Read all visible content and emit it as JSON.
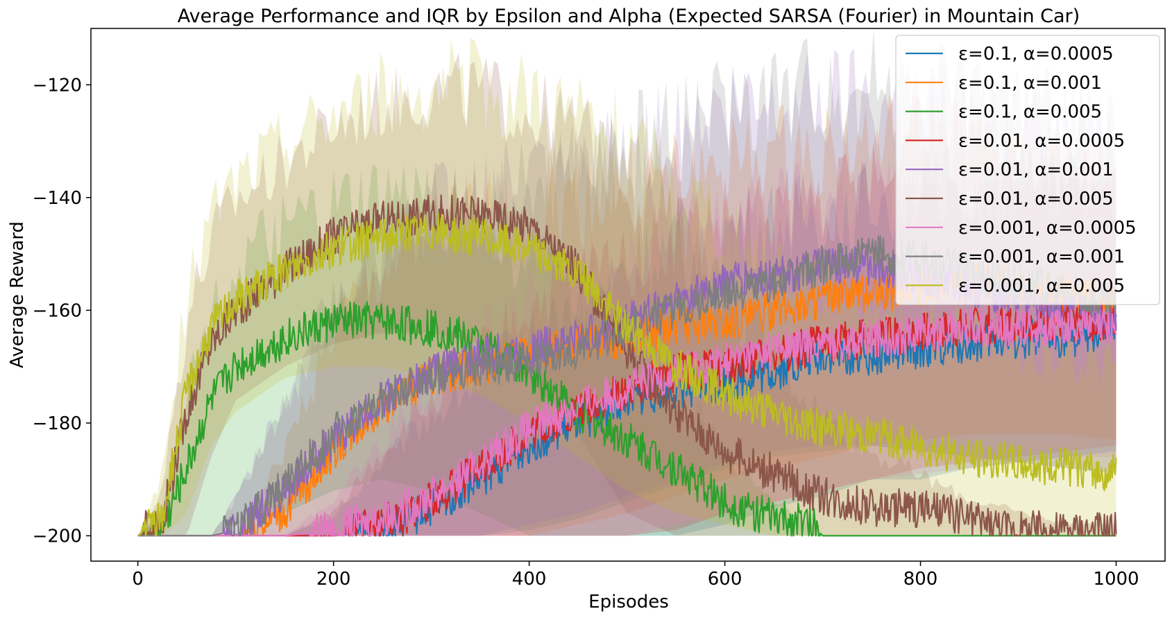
{
  "chart_data": {
    "type": "line",
    "title": "Average Performance and IQR by Epsilon and Alpha (Expected SARSA (Fourier) in Mountain Car)",
    "xlabel": "Episodes",
    "ylabel": "Average Reward",
    "xlim": [
      -48,
      1050
    ],
    "ylim": [
      -204.5,
      -110
    ],
    "xticks": [
      0,
      200,
      400,
      600,
      800,
      1000
    ],
    "xtick_labels": [
      "0",
      "200",
      "400",
      "600",
      "800",
      "1000"
    ],
    "yticks": [
      -200,
      -180,
      -160,
      -140,
      -120
    ],
    "ytick_labels": [
      "−200",
      "−180",
      "−160",
      "−140",
      "−120"
    ],
    "grid": false,
    "legend_position": "top-right",
    "series": [
      {
        "name": "ε=0.1, α=0.0005",
        "color": "#1f77b4",
        "x": [
          0,
          150,
          200,
          250,
          300,
          350,
          400,
          450,
          500,
          550,
          600,
          650,
          700,
          750,
          800,
          850,
          900,
          950,
          1000
        ],
        "y": [
          -200,
          -200,
          -200,
          -199,
          -195,
          -190,
          -184,
          -180,
          -176,
          -174,
          -173,
          -171,
          -168,
          -168,
          -167,
          -166,
          -165,
          -165,
          -164
        ],
        "iqr_low": [
          -200,
          -200,
          -200,
          -200,
          -200,
          -200,
          -200,
          -200,
          -200,
          -200,
          -198,
          -195,
          -193,
          -190,
          -190,
          -188,
          -187,
          -186,
          -185
        ],
        "iqr_high": [
          -200,
          -200,
          -197,
          -188,
          -180,
          -174,
          -166,
          -162,
          -156,
          -152,
          -150,
          -148,
          -146,
          -144,
          -142,
          -142,
          -141,
          -142,
          -142
        ]
      },
      {
        "name": "ε=0.1, α=0.001",
        "color": "#ff7f0e",
        "x": [
          0,
          100,
          150,
          200,
          250,
          300,
          350,
          400,
          450,
          500,
          550,
          600,
          650,
          700,
          750,
          800,
          850,
          900,
          950,
          1000
        ],
        "y": [
          -200,
          -200,
          -196,
          -185,
          -177,
          -172,
          -170,
          -168,
          -166,
          -165,
          -163,
          -162,
          -160,
          -158,
          -157,
          -156,
          -155,
          -156,
          -157,
          -158
        ],
        "iqr_low": [
          -200,
          -200,
          -200,
          -200,
          -200,
          -200,
          -200,
          -200,
          -198,
          -196,
          -193,
          -190,
          -188,
          -186,
          -184,
          -183,
          -182,
          -182,
          -182,
          -183
        ],
        "iqr_high": [
          -200,
          -200,
          -186,
          -166,
          -156,
          -150,
          -148,
          -146,
          -144,
          -142,
          -140,
          -138,
          -136,
          -135,
          -134,
          -133,
          -134,
          -136,
          -138,
          -140
        ]
      },
      {
        "name": "ε=0.1, α=0.005",
        "color": "#2ca02c",
        "x": [
          0,
          25,
          50,
          75,
          100,
          150,
          200,
          250,
          300,
          350,
          400,
          450,
          500,
          550,
          600,
          650,
          690,
          700,
          1000
        ],
        "y": [
          -200,
          -199,
          -188,
          -176,
          -170,
          -165,
          -162,
          -162,
          -163,
          -166,
          -171,
          -178,
          -183,
          -188,
          -194,
          -197,
          -198,
          -200,
          -200
        ],
        "iqr_low": [
          -200,
          -200,
          -200,
          -200,
          -198,
          -196,
          -192,
          -190,
          -192,
          -196,
          -200,
          -200,
          -200,
          -200,
          -200,
          -200,
          -200,
          -200,
          -200
        ],
        "iqr_high": [
          -200,
          -196,
          -176,
          -164,
          -156,
          -150,
          -146,
          -144,
          -144,
          -148,
          -154,
          -160,
          -168,
          -176,
          -186,
          -194,
          -198,
          -200,
          -200
        ]
      },
      {
        "name": "ε=0.01, α=0.0005",
        "color": "#d62728",
        "x": [
          0,
          150,
          200,
          250,
          300,
          350,
          400,
          450,
          500,
          550,
          600,
          650,
          700,
          750,
          800,
          850,
          900,
          950,
          1000
        ],
        "y": [
          -200,
          -200,
          -200,
          -198,
          -194,
          -188,
          -182,
          -178,
          -174,
          -171,
          -170,
          -168,
          -166,
          -165,
          -164,
          -163,
          -162,
          -162,
          -162
        ],
        "iqr_low": [
          -200,
          -200,
          -200,
          -200,
          -200,
          -200,
          -200,
          -200,
          -200,
          -199,
          -196,
          -194,
          -192,
          -190,
          -188,
          -187,
          -186,
          -185,
          -184
        ],
        "iqr_high": [
          -200,
          -200,
          -196,
          -186,
          -178,
          -170,
          -162,
          -158,
          -154,
          -150,
          -148,
          -146,
          -144,
          -142,
          -141,
          -140,
          -140,
          -141,
          -142
        ]
      },
      {
        "name": "ε=0.01, α=0.001",
        "color": "#9467bd",
        "x": [
          0,
          75,
          100,
          150,
          200,
          250,
          300,
          350,
          400,
          450,
          500,
          550,
          600,
          650,
          700,
          750,
          800,
          850,
          900,
          950,
          1000
        ],
        "y": [
          -200,
          -200,
          -199,
          -192,
          -183,
          -176,
          -171,
          -168,
          -167,
          -165,
          -162,
          -158,
          -155,
          -154,
          -152,
          -152,
          -154,
          -156,
          -158,
          -160,
          -162
        ],
        "iqr_low": [
          -200,
          -200,
          -200,
          -200,
          -200,
          -200,
          -200,
          -200,
          -198,
          -196,
          -193,
          -190,
          -187,
          -185,
          -184,
          -184,
          -185,
          -186,
          -187,
          -188,
          -189
        ],
        "iqr_high": [
          -200,
          -200,
          -194,
          -178,
          -162,
          -152,
          -146,
          -144,
          -142,
          -140,
          -136,
          -132,
          -129,
          -127,
          -125,
          -125,
          -126,
          -128,
          -130,
          -132,
          -134
        ]
      },
      {
        "name": "ε=0.01, α=0.005",
        "color": "#8c564b",
        "x": [
          0,
          25,
          50,
          75,
          100,
          150,
          200,
          250,
          300,
          350,
          400,
          450,
          500,
          550,
          600,
          650,
          700,
          750,
          800,
          850,
          900,
          950,
          1000
        ],
        "y": [
          -200,
          -197,
          -178,
          -166,
          -160,
          -153,
          -147,
          -144,
          -143,
          -143,
          -145,
          -153,
          -167,
          -178,
          -185,
          -189,
          -193,
          -195,
          -195,
          -197,
          -199,
          -199,
          -199
        ],
        "iqr_low": [
          -200,
          -200,
          -200,
          -186,
          -176,
          -170,
          -166,
          -164,
          -164,
          -166,
          -172,
          -182,
          -196,
          -200,
          -200,
          -200,
          -200,
          -200,
          -200,
          -200,
          -200,
          -200,
          -200
        ],
        "iqr_high": [
          -200,
          -192,
          -164,
          -150,
          -143,
          -136,
          -130,
          -126,
          -124,
          -124,
          -128,
          -132,
          -140,
          -150,
          -160,
          -170,
          -180,
          -186,
          -190,
          -194,
          -196,
          -198,
          -198
        ]
      },
      {
        "name": "ε=0.001, α=0.0005",
        "color": "#e377c2",
        "x": [
          0,
          150,
          200,
          250,
          300,
          350,
          400,
          450,
          500,
          550,
          600,
          650,
          700,
          750,
          800,
          850,
          900,
          950,
          1000
        ],
        "y": [
          -200,
          -200,
          -199,
          -197,
          -193,
          -187,
          -181,
          -177,
          -174,
          -171,
          -169,
          -167,
          -166,
          -165,
          -164,
          -163,
          -163,
          -163,
          -163
        ],
        "iqr_low": [
          -200,
          -200,
          -200,
          -200,
          -200,
          -200,
          -200,
          -200,
          -200,
          -198,
          -196,
          -194,
          -192,
          -190,
          -189,
          -188,
          -187,
          -186,
          -186
        ],
        "iqr_high": [
          -200,
          -200,
          -194,
          -184,
          -176,
          -168,
          -161,
          -157,
          -153,
          -150,
          -148,
          -146,
          -144,
          -143,
          -142,
          -141,
          -141,
          -142,
          -143
        ]
      },
      {
        "name": "ε=0.001, α=0.001",
        "color": "#7f7f7f",
        "x": [
          0,
          75,
          100,
          150,
          200,
          250,
          300,
          350,
          400,
          450,
          500,
          550,
          600,
          650,
          700,
          750,
          800,
          850,
          900,
          950,
          1000
        ],
        "y": [
          -200,
          -200,
          -199,
          -191,
          -182,
          -176,
          -172,
          -170,
          -169,
          -167,
          -163,
          -160,
          -157,
          -155,
          -152,
          -150,
          -151,
          -153,
          -155,
          -157,
          -159
        ],
        "iqr_low": [
          -200,
          -200,
          -200,
          -200,
          -200,
          -200,
          -200,
          -200,
          -199,
          -197,
          -194,
          -191,
          -188,
          -186,
          -185,
          -184,
          -185,
          -186,
          -187,
          -188,
          -189
        ],
        "iqr_high": [
          -200,
          -200,
          -194,
          -178,
          -162,
          -152,
          -147,
          -145,
          -143,
          -140,
          -136,
          -132,
          -129,
          -127,
          -125,
          -124,
          -125,
          -127,
          -129,
          -131,
          -133
        ]
      },
      {
        "name": "ε=0.001, α=0.005",
        "color": "#bcbd22",
        "x": [
          0,
          25,
          50,
          75,
          100,
          150,
          200,
          250,
          300,
          350,
          400,
          450,
          500,
          550,
          600,
          650,
          700,
          750,
          800,
          850,
          900,
          950,
          1000
        ],
        "y": [
          -200,
          -197,
          -174,
          -163,
          -158,
          -153,
          -149,
          -147,
          -146,
          -147,
          -149,
          -154,
          -163,
          -170,
          -175,
          -178,
          -181,
          -182,
          -184,
          -186,
          -187,
          -188,
          -189
        ],
        "iqr_low": [
          -200,
          -200,
          -196,
          -184,
          -178,
          -172,
          -170,
          -170,
          -172,
          -175,
          -180,
          -186,
          -192,
          -196,
          -198,
          -200,
          -200,
          -200,
          -200,
          -200,
          -200,
          -200,
          -200
        ],
        "iqr_high": [
          -200,
          -190,
          -160,
          -146,
          -140,
          -133,
          -128,
          -125,
          -124,
          -124,
          -126,
          -130,
          -136,
          -142,
          -148,
          -154,
          -158,
          -161,
          -164,
          -166,
          -168,
          -170,
          -172
        ]
      }
    ]
  }
}
